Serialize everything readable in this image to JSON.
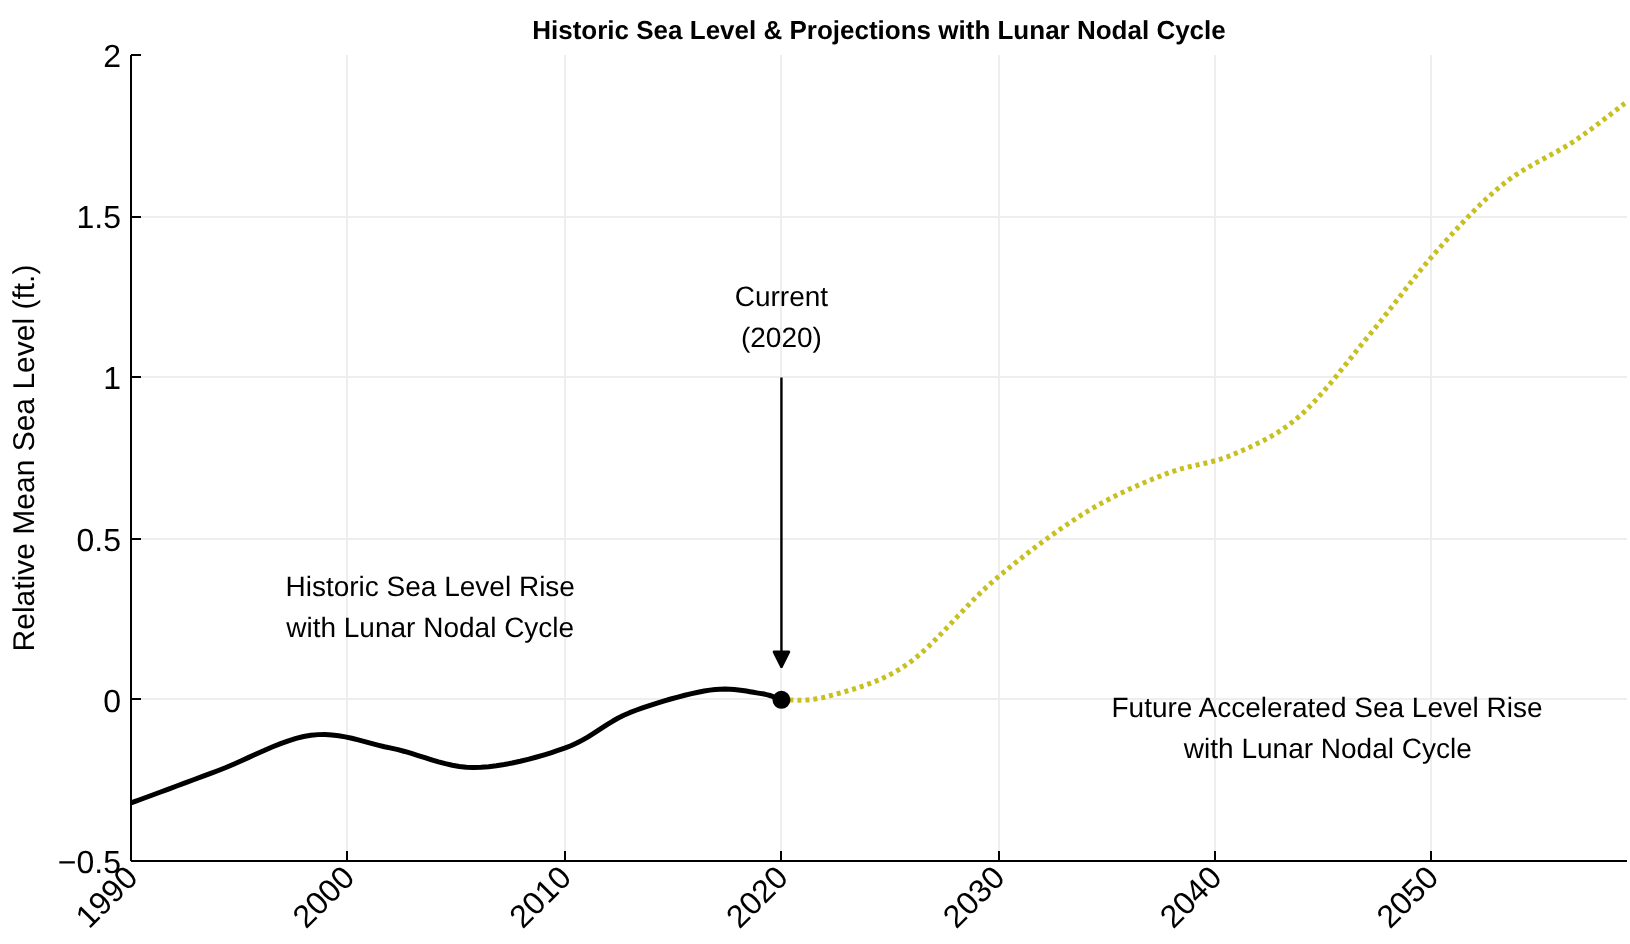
{
  "chart_data": {
    "type": "line",
    "title": "Historic Sea Level & Projections with Lunar Nodal Cycle",
    "ylabel": "Relative Mean Sea Level (ft.)",
    "xlim": [
      1990,
      2059
    ],
    "ylim": [
      -0.5,
      2
    ],
    "xticks": [
      1990,
      2000,
      2010,
      2020,
      2030,
      2040,
      2050
    ],
    "yticks": [
      -0.5,
      0,
      0.5,
      1,
      1.5,
      2
    ],
    "grid": true,
    "series": [
      {
        "line_style": "solid",
        "color": "#000000",
        "x": [
          1990,
          1994,
          1998.3,
          2002,
          2005.8,
          2010,
          2013,
          2016.7,
          2019,
          2020
        ],
        "values": [
          -0.32,
          -0.22,
          -0.11,
          -0.15,
          -0.21,
          -0.15,
          -0.04,
          0.03,
          0.02,
          0
        ]
      },
      {
        "line_style": "dotted",
        "color": "#c8c020",
        "x": [
          2020,
          2022.1,
          2025.8,
          2029.8,
          2034,
          2037.7,
          2040.8,
          2043.9,
          2047.1,
          2050.2,
          2053.3,
          2056.5,
          2058.9
        ],
        "values": [
          0,
          0.01,
          0.11,
          0.37,
          0.58,
          0.7,
          0.76,
          0.88,
          1.13,
          1.39,
          1.6,
          1.73,
          1.85
        ]
      },
      {
        "type": "scatter",
        "marker": "circle",
        "color": "#000000",
        "x": [
          2020
        ],
        "values": [
          0
        ]
      }
    ],
    "annotations": [
      "Current\n(2020)",
      "Historic Sea Level Rise\nwith Lunar Nodal Cycle",
      "Future Accelerated Sea Level Rise\nwith Lunar Nodal Cycle"
    ]
  }
}
